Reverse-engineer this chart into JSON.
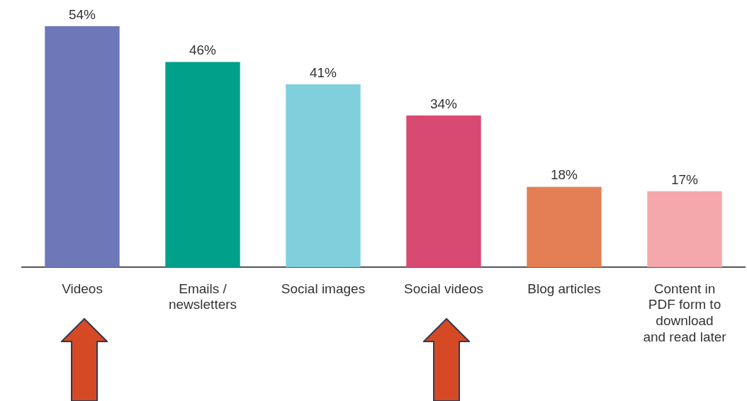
{
  "chart_data": {
    "type": "bar",
    "categories": [
      "Videos",
      "Emails /\nnewsletters",
      "Social images",
      "Social videos",
      "Blog articles",
      "Content in\nPDF form to\ndownload\nand read later"
    ],
    "values": [
      54,
      46,
      41,
      34,
      18,
      17
    ],
    "value_labels": [
      "54%",
      "46%",
      "41%",
      "34%",
      "18%",
      "17%"
    ],
    "colors": [
      "#6e78b8",
      "#00a08a",
      "#80cfdd",
      "#d94a72",
      "#e47f55",
      "#f5a8ab"
    ],
    "legend": false,
    "grid": false
  }
}
